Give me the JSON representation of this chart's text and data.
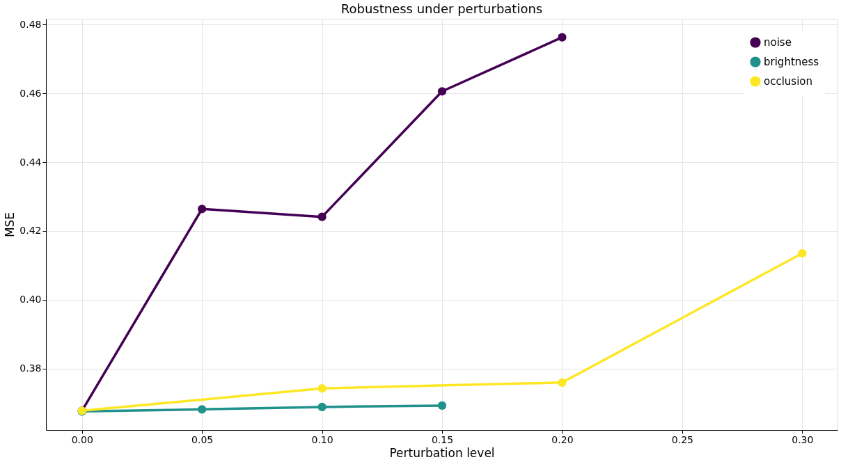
{
  "chart_data": {
    "type": "line",
    "title": "Robustness under perturbations",
    "xlabel": "Perturbation level",
    "ylabel": "MSE",
    "series": [
      {
        "name": "noise",
        "color": "#440154",
        "x": [
          0.0,
          0.05,
          0.1,
          0.15,
          0.2
        ],
        "values": [
          0.3677,
          0.4264,
          0.4241,
          0.4606,
          0.4763
        ]
      },
      {
        "name": "brightness",
        "color": "#21918c",
        "x": [
          0.0,
          0.05,
          0.1,
          0.15
        ],
        "values": [
          0.3675,
          0.3681,
          0.3688,
          0.3692
        ]
      },
      {
        "name": "occlusion",
        "color": "#fde725",
        "x": [
          0.0,
          0.1,
          0.2,
          0.3
        ],
        "values": [
          0.3677,
          0.3742,
          0.3759,
          0.4135
        ]
      }
    ],
    "xlim": [
      -0.015,
      0.3147
    ],
    "xticks": [
      {
        "value": 0.0,
        "label": "0.00"
      },
      0.05,
      {
        "value": 0.1,
        "label": "0.10"
      },
      0.15,
      {
        "value": 0.2,
        "label": "0.20"
      },
      0.25,
      {
        "value": 0.3,
        "label": "0.30"
      }
    ],
    "ylim": [
      0.3621,
      0.4817
    ],
    "yticks": [
      0.38,
      {
        "value": 0.4,
        "label": "0.40"
      },
      0.42,
      0.44,
      0.46,
      0.48
    ],
    "grid": true,
    "legend": "top right",
    "marker": "circle",
    "line_style": "solid"
  }
}
